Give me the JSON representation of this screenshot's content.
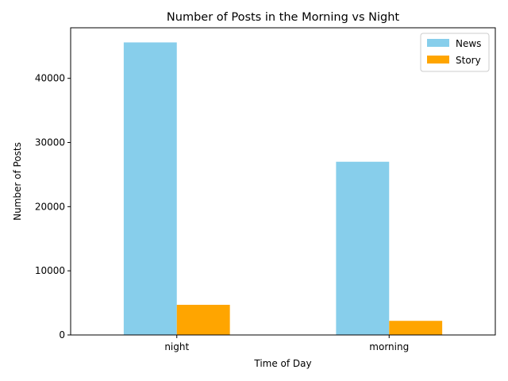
{
  "chart_data": {
    "type": "bar",
    "title": "Number of Posts in the Morning vs Night",
    "xlabel": "Time of Day",
    "ylabel": "Number of Posts",
    "categories": [
      "night",
      "morning"
    ],
    "series": [
      {
        "name": "News",
        "color": "#87ceeb",
        "values": [
          45600,
          27000
        ]
      },
      {
        "name": "Story",
        "color": "#ffa500",
        "values": [
          4700,
          2200
        ]
      }
    ],
    "ylim": [
      0,
      47880
    ],
    "yticks": [
      0,
      10000,
      20000,
      30000,
      40000
    ],
    "grid": false,
    "legend_position": "top-right"
  }
}
